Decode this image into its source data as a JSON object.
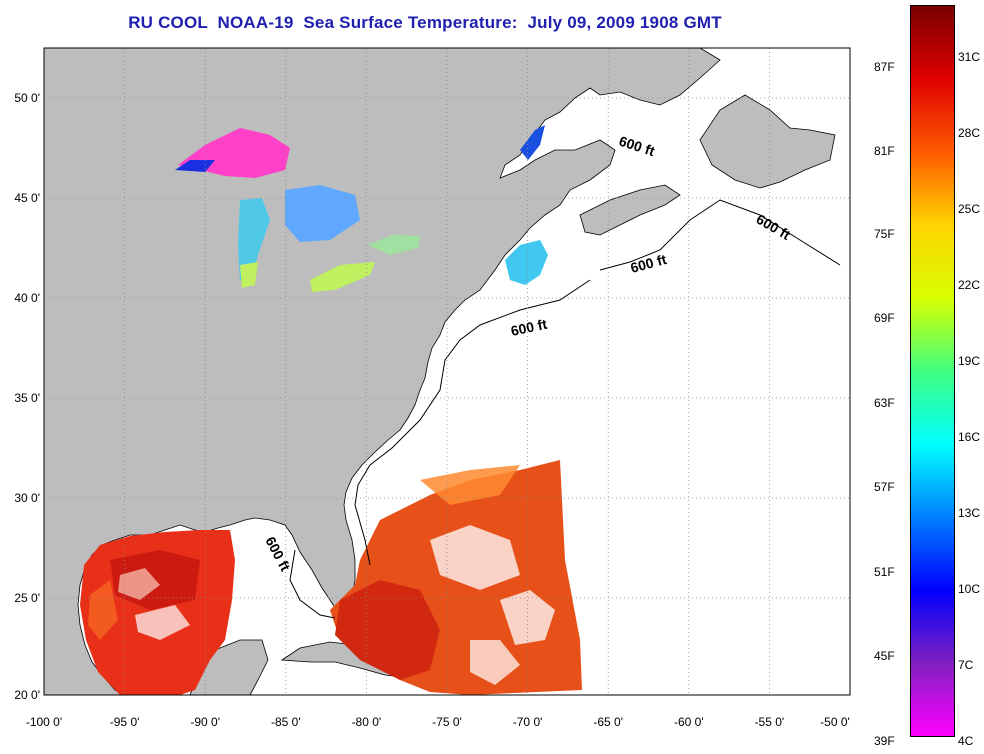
{
  "title": "RU COOL  NOAA-19  Sea Surface Temperature:  July 09, 2009 1908 GMT",
  "map": {
    "lon_ticks": [
      "-100 0'",
      "-95 0'",
      "-90 0'",
      "-85 0'",
      "-80 0'",
      "-75 0'",
      "-70 0'",
      "-65 0'",
      "-60 0'",
      "-55 0'",
      "-50 0'"
    ],
    "lat_ticks": [
      "50 0'",
      "45 0'",
      "40 0'",
      "35 0'",
      "30 0'",
      "25 0'",
      "20 0'"
    ],
    "depth_contour_label": "600 ft",
    "depth_labels": [
      "600 ft",
      "600 ft",
      "600 ft",
      "600 ft",
      "600 ft"
    ],
    "land_color": "#bdbdbd",
    "ocean_nodata_color": "#ffffff"
  },
  "colorbar": {
    "fahrenheit_labels": [
      "87F",
      "81F",
      "75F",
      "69F",
      "63F",
      "57F",
      "51F",
      "45F",
      "39F"
    ],
    "celsius_labels": [
      "31C",
      "28C",
      "25C",
      "22C",
      "19C",
      "16C",
      "13C",
      "10C",
      "7C",
      "4C"
    ],
    "colors_top_to_bottom": [
      "#7a0000",
      "#e00000",
      "#ff5a00",
      "#ffd400",
      "#d8ff00",
      "#40ff80",
      "#00ffff",
      "#0080ff",
      "#0000ff",
      "#8020c0",
      "#ff00ff"
    ]
  }
}
